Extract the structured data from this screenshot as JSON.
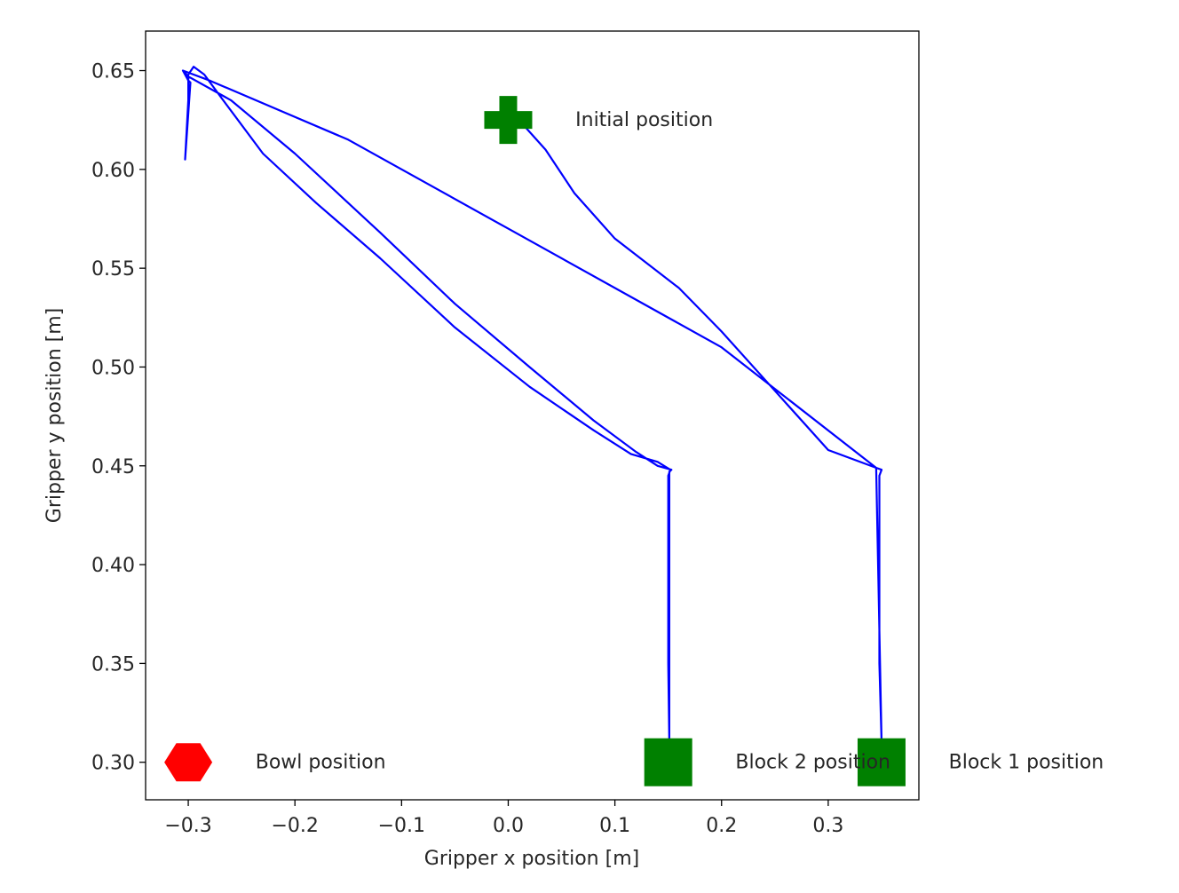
{
  "chart_data": {
    "type": "line",
    "xlabel": "Gripper x position [m]",
    "ylabel": "Gripper y position [m]",
    "xlim": [
      -0.34,
      0.385
    ],
    "ylim": [
      0.281,
      0.67
    ],
    "x_ticks": [
      -0.3,
      -0.2,
      -0.1,
      0.0,
      0.1,
      0.2,
      0.3
    ],
    "x_tick_labels": [
      "−0.3",
      "−0.2",
      "−0.1",
      "0.0",
      "0.1",
      "0.2",
      "0.3"
    ],
    "y_ticks": [
      0.3,
      0.35,
      0.4,
      0.45,
      0.5,
      0.55,
      0.6,
      0.65
    ],
    "y_tick_labels": [
      "0.30",
      "0.35",
      "0.40",
      "0.45",
      "0.50",
      "0.55",
      "0.60",
      "0.65"
    ],
    "grid": false,
    "series": [
      {
        "color": "#0000ff",
        "x": [
          0.0,
          0.015,
          0.035,
          0.062,
          0.1,
          0.16,
          0.2,
          0.25,
          0.3,
          0.345,
          0.35,
          0.348,
          0.348,
          0.348,
          0.35,
          0.345,
          0.2,
          0.0,
          -0.15,
          -0.28,
          -0.305,
          -0.3,
          -0.298,
          -0.303,
          -0.3,
          -0.3,
          -0.295,
          -0.285,
          -0.27,
          -0.23,
          -0.18,
          -0.12,
          -0.05,
          0.02,
          0.08,
          0.115,
          0.14,
          0.152,
          0.15,
          0.15,
          0.151,
          0.151,
          0.153,
          0.14,
          0.12,
          0.08,
          0.02,
          -0.05,
          -0.12,
          -0.2,
          -0.26,
          -0.3,
          -0.305,
          -0.3,
          -0.298,
          -0.303
        ],
        "y": [
          0.625,
          0.622,
          0.61,
          0.588,
          0.565,
          0.54,
          0.518,
          0.488,
          0.458,
          0.449,
          0.448,
          0.445,
          0.4,
          0.35,
          0.31,
          0.449,
          0.51,
          0.57,
          0.615,
          0.645,
          0.65,
          0.645,
          0.644,
          0.605,
          0.635,
          0.648,
          0.652,
          0.648,
          0.637,
          0.608,
          0.583,
          0.555,
          0.52,
          0.49,
          0.468,
          0.456,
          0.452,
          0.448,
          0.445,
          0.35,
          0.31,
          0.447,
          0.448,
          0.45,
          0.457,
          0.473,
          0.5,
          0.532,
          0.568,
          0.608,
          0.635,
          0.647,
          0.65,
          0.645,
          0.644,
          0.605
        ]
      }
    ],
    "markers": [
      {
        "x": 0.0,
        "y": 0.625,
        "shape": "plus",
        "color": "#008000",
        "label": "Initial position"
      },
      {
        "x": 0.35,
        "y": 0.3,
        "shape": "square",
        "color": "#008000",
        "label": "Block 1 position"
      },
      {
        "x": 0.15,
        "y": 0.3,
        "shape": "square",
        "color": "#008000",
        "label": "Block 2 position"
      },
      {
        "x": -0.3,
        "y": 0.3,
        "shape": "hexagon",
        "color": "#ff0000",
        "label": "Bowl position"
      }
    ]
  }
}
